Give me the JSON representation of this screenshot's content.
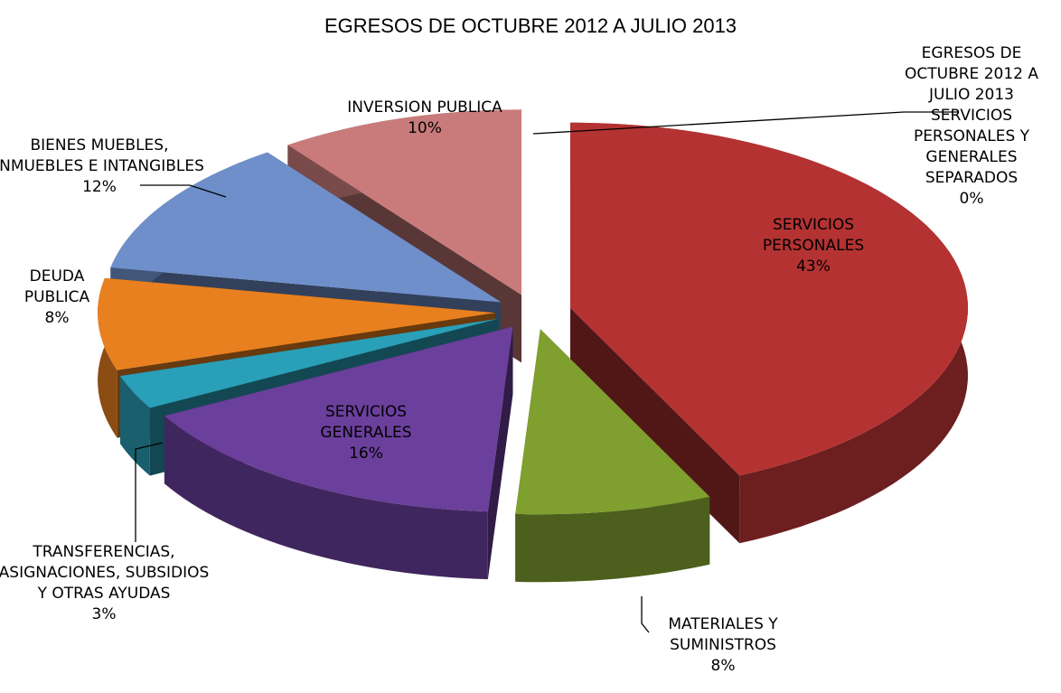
{
  "chart_data": {
    "type": "pie",
    "title": "EGRESOS DE OCTUBRE 2012 A JULIO 2013",
    "categories": [
      "SERVICIOS PERSONALES",
      "MATERIALES Y SUMINISTROS",
      "SERVICIOS GENERALES",
      "TRANSFERENCIAS, ASIGNACIONES, SUBSIDIOS Y OTRAS AYUDAS",
      "DEUDA PUBLICA",
      "BIENES MUEBLES, INMUEBLES E INTANGIBLES",
      "INVERSION PUBLICA",
      "EGRESOS DE OCTUBRE 2012 A JULIO 2013 SERVICIOS PERSONALES Y GENERALES SEPARADOS"
    ],
    "values": [
      43,
      8,
      16,
      3,
      8,
      12,
      10,
      0
    ],
    "value_labels": [
      "43%",
      "8%",
      "16%",
      "3%",
      "8%",
      "12%",
      "10%",
      "0%"
    ],
    "colors": [
      "#b53232",
      "#7f9f2f",
      "#6b3f9c",
      "#2a9fb8",
      "#e8801f",
      "#6e8fca",
      "#c97b7b",
      "#8fa9d8"
    ]
  }
}
